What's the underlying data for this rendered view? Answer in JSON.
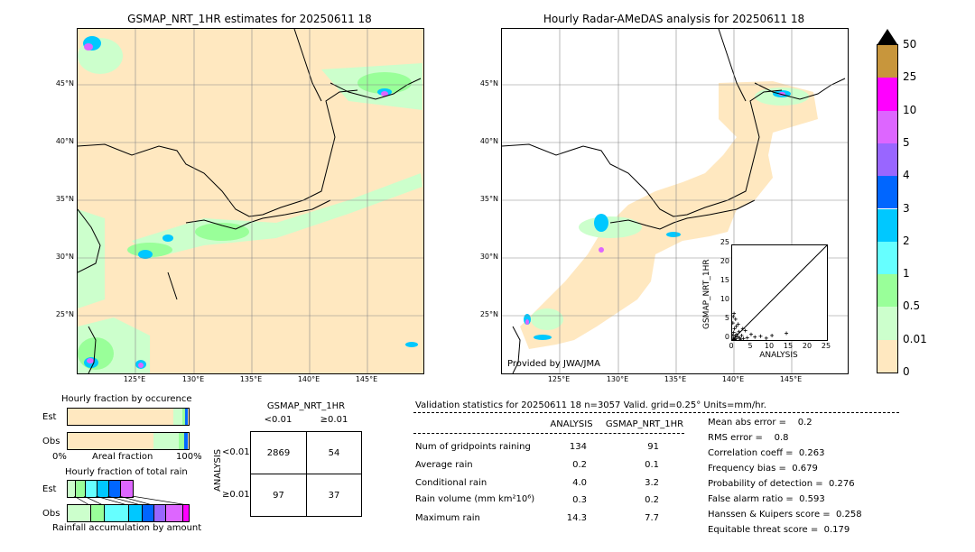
{
  "left_map": {
    "title": "GSMAP_NRT_1HR estimates for 20250611 18",
    "lat_labels": [
      "45°N",
      "40°N",
      "35°N",
      "30°N",
      "25°N"
    ],
    "lon_labels": [
      "125°E",
      "130°E",
      "135°E",
      "140°E",
      "145°E"
    ]
  },
  "right_map": {
    "title": "Hourly Radar-AMeDAS analysis for 20250611 18",
    "lat_labels": [
      "45°N",
      "40°N",
      "35°N",
      "30°N",
      "25°N"
    ],
    "lon_labels": [
      "125°E",
      "130°E",
      "135°E",
      "140°E",
      "145°E"
    ],
    "credit": "Provided by JWA/JMA"
  },
  "colorbar": {
    "labels": [
      "50",
      "25",
      "10",
      "5",
      "4",
      "3",
      "2",
      "1",
      "0.5",
      "0.01",
      "0"
    ],
    "colors": [
      "#c8963c",
      "#ff00ff",
      "#dd66ff",
      "#9966ff",
      "#0066ff",
      "#00c8ff",
      "#66ffff",
      "#99ff99",
      "#ccffcc",
      "#ffe8c0"
    ]
  },
  "scatter": {
    "ylabel": "GSMAP_NRT_1HR",
    "xlabel": "ANALYSIS",
    "ticks": [
      "0",
      "5",
      "10",
      "15",
      "20",
      "25"
    ]
  },
  "occurrence": {
    "title": "Hourly fraction by occurence",
    "row_est": "Est",
    "row_obs": "Obs",
    "axis_left": "0%",
    "axis_mid": "Areal fraction",
    "axis_right": "100%"
  },
  "total_rain": {
    "title": "Hourly fraction of total rain",
    "row_est": "Est",
    "row_obs": "Obs",
    "footer": "Rainfall accumulation by amount"
  },
  "contingency": {
    "title": "GSMAP_NRT_1HR",
    "col_lt": "<0.01",
    "col_ge": "≥0.01",
    "side_label": "ANALYSIS",
    "row_lt": "<0.01",
    "row_ge": "≥0.01",
    "cells": [
      "2869",
      "54",
      "97",
      "37"
    ]
  },
  "validation": {
    "header": "Validation statistics for 20250611 18  n=3057 Valid. grid=0.25° Units=mm/hr.",
    "col_analysis": "ANALYSIS",
    "col_gsmap": "GSMAP_NRT_1HR",
    "rows": [
      {
        "label": "Num of gridpoints raining",
        "analysis": "134",
        "gsmap": "91"
      },
      {
        "label": "Average rain",
        "analysis": "0.2",
        "gsmap": "0.1"
      },
      {
        "label": "Conditional rain",
        "analysis": "4.0",
        "gsmap": "3.2"
      },
      {
        "label": "Rain volume (mm km²10⁶)",
        "analysis": "0.3",
        "gsmap": "0.2"
      },
      {
        "label": "Maximum rain",
        "analysis": "14.3",
        "gsmap": "7.7"
      }
    ],
    "scores": [
      "Mean abs error =    0.2",
      "RMS error =    0.8",
      "Correlation coeff =  0.263",
      "Frequency bias =  0.679",
      "Probability of detection =  0.276",
      "False alarm ratio =  0.593",
      "Hanssen & Kuipers score =  0.258",
      "Equitable threat score =  0.179"
    ]
  },
  "chart_data": [
    {
      "type": "scatter",
      "xlabel": "ANALYSIS",
      "ylabel": "GSMAP_NRT_1HR",
      "xlim": [
        0,
        25
      ],
      "ylim": [
        0,
        25
      ],
      "points": [
        [
          0.3,
          0.5
        ],
        [
          0.5,
          0.2
        ],
        [
          0.8,
          1.0
        ],
        [
          1.0,
          0.3
        ],
        [
          1.2,
          1.5
        ],
        [
          0.4,
          2.0
        ],
        [
          0.6,
          3.0
        ],
        [
          0.2,
          4.5
        ],
        [
          0.9,
          5.5
        ],
        [
          1.5,
          0.8
        ],
        [
          2.0,
          0.5
        ],
        [
          2.5,
          1.2
        ],
        [
          3.0,
          0.4
        ],
        [
          1.8,
          2.2
        ],
        [
          0.5,
          7.0
        ],
        [
          0.3,
          6.2
        ],
        [
          4.0,
          0.6
        ],
        [
          5.0,
          1.5
        ],
        [
          6.0,
          0.8
        ],
        [
          7.5,
          1.0
        ],
        [
          9.0,
          0.5
        ],
        [
          10.5,
          1.2
        ],
        [
          14.3,
          1.8
        ],
        [
          1.1,
          3.6
        ],
        [
          2.2,
          0.2
        ],
        [
          0.7,
          0.1
        ],
        [
          3.5,
          2.5
        ],
        [
          1.6,
          4.2
        ],
        [
          2.8,
          3.0
        ],
        [
          0.2,
          1.3
        ]
      ]
    },
    {
      "type": "table",
      "title": "GSMAP_NRT_1HR",
      "columns": [
        "<0.01",
        "≥0.01"
      ],
      "rows": [
        "<0.01",
        "≥0.01"
      ],
      "values": [
        [
          2869,
          54
        ],
        [
          97,
          37
        ]
      ]
    }
  ]
}
